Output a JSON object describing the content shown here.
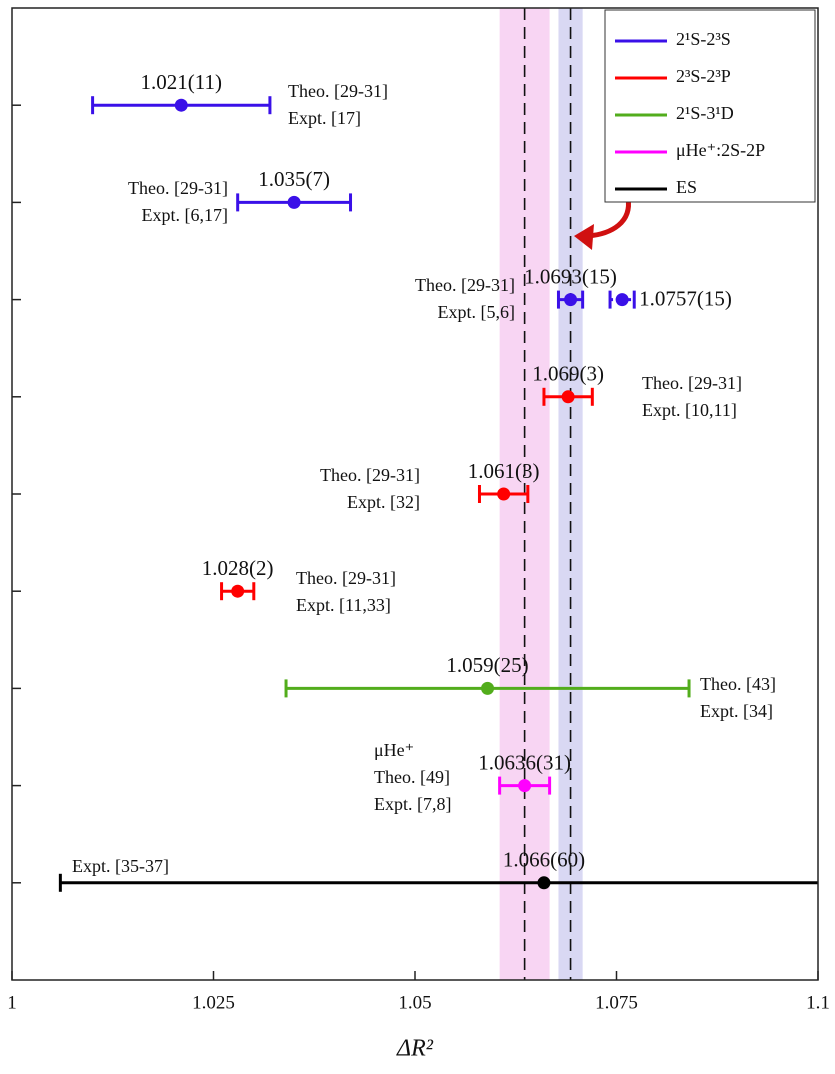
{
  "chart_data": {
    "type": "errorbar",
    "x_label": "ΔR²",
    "xlim": [
      1,
      1.1
    ],
    "xticks": [
      1,
      1.025,
      1.05,
      1.075,
      1.1
    ],
    "ylim": [
      10,
      0
    ],
    "yticks": [
      1,
      2,
      3,
      4,
      5,
      6,
      7,
      8,
      9
    ],
    "legend": "upper right",
    "series": [
      {
        "name": "2¹S-2³S",
        "color": "#3a10e8",
        "points": [
          {
            "row": 1,
            "value": 1.021,
            "error": 0.011,
            "value_label": "1.021(11)"
          },
          {
            "row": 2,
            "value": 1.035,
            "error": 0.007,
            "value_label": "1.035(7)"
          },
          {
            "row": 3,
            "value": 1.0693,
            "error": 0.0015,
            "value_label": "1.0693(15)",
            "band_color": "#d9d8f3"
          },
          {
            "row": 3,
            "value": 1.0757,
            "error": 0.0015,
            "value_label": "1.0757(15)",
            "dotted": true
          }
        ]
      },
      {
        "name": "2³S-2³P",
        "color": "#ff0000",
        "points": [
          {
            "row": 4,
            "value": 1.069,
            "error": 0.003,
            "value_label": "1.069(3)"
          },
          {
            "row": 5,
            "value": 1.061,
            "error": 0.003,
            "value_label": "1.061(3)"
          },
          {
            "row": 6,
            "value": 1.028,
            "error": 0.002,
            "value_label": "1.028(2)"
          }
        ]
      },
      {
        "name": "2¹S-3¹D",
        "color": "#52ad1c",
        "points": [
          {
            "row": 7,
            "value": 1.059,
            "error": 0.025,
            "value_label": "1.059(25)"
          }
        ]
      },
      {
        "name": "μHe⁺:2S-2P",
        "color": "#ff00ff",
        "points": [
          {
            "row": 8,
            "value": 1.0636,
            "error": 0.0031,
            "value_label": "1.0636(31)",
            "band_color": "#f8d5f3"
          }
        ]
      },
      {
        "name": "ES",
        "color": "#000000",
        "points": [
          {
            "row": 9,
            "value": 1.066,
            "error": 0.06,
            "value_label": "1.066(60)"
          }
        ]
      }
    ],
    "annotations": [
      {
        "row": 1,
        "lines": [
          "Theo. [29-31]",
          "Expt. [17]"
        ]
      },
      {
        "row": 2,
        "lines": [
          "Theo. [29-31]",
          "Expt. [6,17]"
        ]
      },
      {
        "row": 3,
        "lines": [
          "Theo. [29-31]",
          "Expt. [5,6]"
        ]
      },
      {
        "row": 4,
        "lines": [
          "Theo. [29-31]",
          "Expt. [10,11]"
        ]
      },
      {
        "row": 5,
        "lines": [
          "Theo. [29-31]",
          "Expt. [32]"
        ]
      },
      {
        "row": 6,
        "lines": [
          "Theo. [29-31]",
          "Expt. [11,33]"
        ]
      },
      {
        "row": 7,
        "lines": [
          "Theo. [43]",
          "Expt. [34]"
        ]
      },
      {
        "row": 8,
        "lines": [
          "μHe⁺",
          "Theo. [49]",
          "Expt. [7,8]"
        ]
      },
      {
        "row": 9,
        "lines": [
          "Expt. [35-37]"
        ]
      }
    ]
  }
}
